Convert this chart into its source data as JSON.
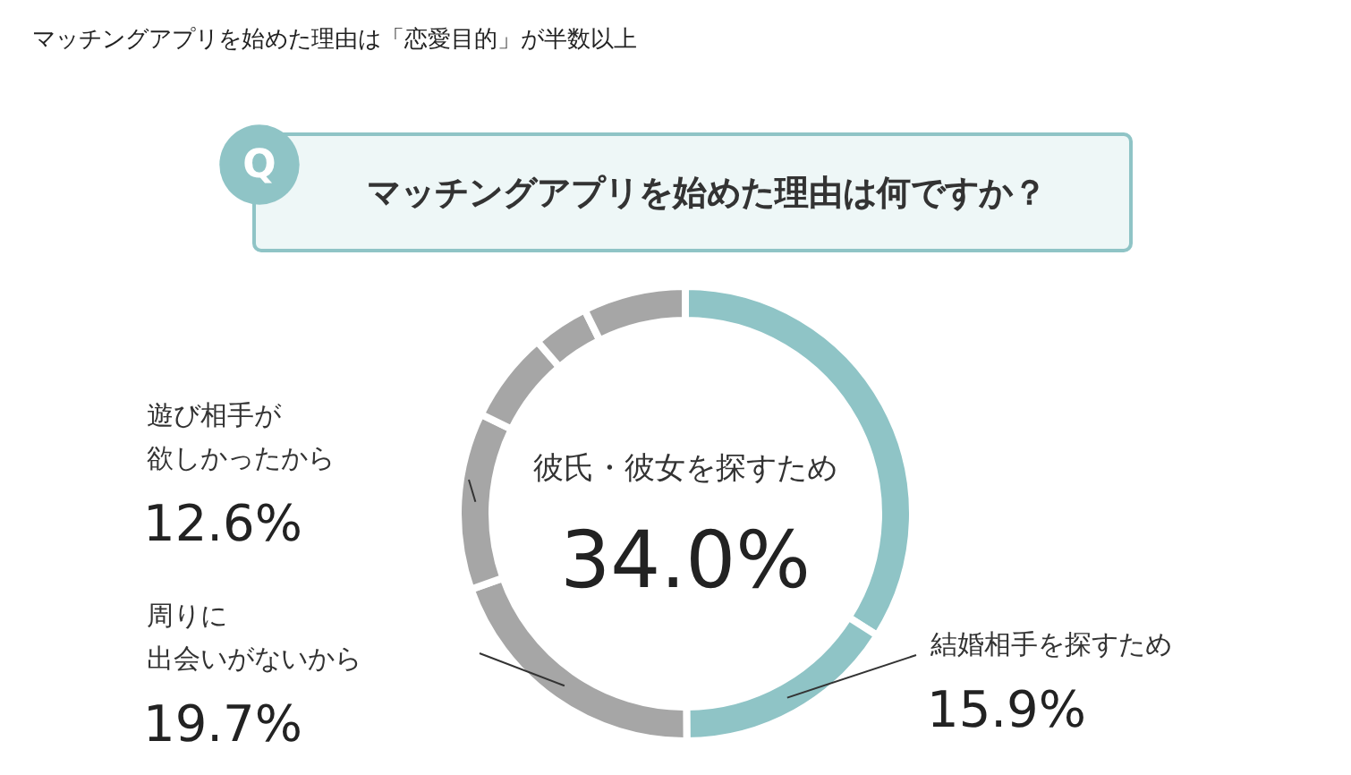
{
  "chart_data": {
    "type": "donut",
    "title": "マッチングアプリを始めた理由は「恋愛目的」が半数以上",
    "subtitle": "マッチングアプリを始めた理由は何ですか？",
    "annotations": [
      "Q"
    ],
    "categories": [
      "彼氏・彼女を探すため",
      "結婚相手を探すため",
      "周りに出会いがないから",
      "遊び相手が欲しかったから",
      null,
      null,
      null
    ],
    "values": [
      34.0,
      15.9,
      19.7,
      12.6,
      6.5,
      4.0,
      7.3
    ],
    "value_labels": [
      "34.0%",
      "15.9%",
      "19.7%",
      "12.6%",
      null,
      null,
      null
    ],
    "colors": [
      "#8fc4c6",
      "#8fc4c6",
      "#a6a6a6",
      "#a6a6a6",
      "#a6a6a6",
      "#a6a6a6",
      "#a6a6a6"
    ]
  }
}
